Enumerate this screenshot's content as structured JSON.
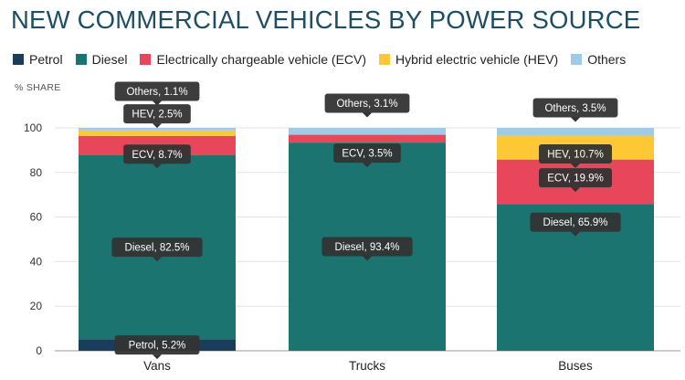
{
  "title": "NEW COMMERCIAL VEHICLES BY POWER SOURCE",
  "legend": [
    {
      "label": "Petrol",
      "color": "#1b3d5c"
    },
    {
      "label": "Diesel",
      "color": "#1b7470"
    },
    {
      "label": "Electrically chargeable vehicle (ECV)",
      "color": "#e8475b"
    },
    {
      "label": "Hybrid electric vehicle (HEV)",
      "color": "#fcc934"
    },
    {
      "label": "Others",
      "color": "#9ecbe7"
    }
  ],
  "chart_data": {
    "type": "bar",
    "stacked": true,
    "ylabel": "% SHARE",
    "ylim": [
      0,
      100
    ],
    "yticks": [
      0,
      20,
      40,
      60,
      80,
      100
    ],
    "categories": [
      "Vans",
      "Trucks",
      "Buses"
    ],
    "series": [
      {
        "name": "Petrol",
        "color": "#1b3d5c",
        "values": [
          5.2,
          0,
          0
        ]
      },
      {
        "name": "Diesel",
        "color": "#1b7470",
        "values": [
          82.5,
          93.4,
          65.9
        ]
      },
      {
        "name": "Electrically chargeable vehicle (ECV)",
        "color": "#e8475b",
        "values": [
          8.7,
          3.5,
          19.9
        ]
      },
      {
        "name": "Hybrid electric vehicle (HEV)",
        "color": "#fcc934",
        "values": [
          2.5,
          0,
          10.7
        ]
      },
      {
        "name": "Others",
        "color": "#9ecbe7",
        "values": [
          1.1,
          3.1,
          3.5
        ]
      }
    ],
    "annotations": [
      {
        "category": "Vans",
        "text": "Petrol, 5.2%",
        "series": "Petrol"
      },
      {
        "category": "Vans",
        "text": "Diesel, 82.5%",
        "series": "Diesel"
      },
      {
        "category": "Vans",
        "text": "ECV, 8.7%",
        "series": "Electrically chargeable vehicle (ECV)"
      },
      {
        "category": "Vans",
        "text": "HEV, 2.5%",
        "series": "Hybrid electric vehicle (HEV)"
      },
      {
        "category": "Vans",
        "text": "Others, 1.1%",
        "series": "Others"
      },
      {
        "category": "Trucks",
        "text": "Diesel, 93.4%",
        "series": "Diesel"
      },
      {
        "category": "Trucks",
        "text": "ECV, 3.5%",
        "series": "Electrically chargeable vehicle (ECV)"
      },
      {
        "category": "Trucks",
        "text": "Others, 3.1%",
        "series": "Others"
      },
      {
        "category": "Buses",
        "text": "Diesel, 65.9%",
        "series": "Diesel"
      },
      {
        "category": "Buses",
        "text": "ECV, 19.9%",
        "series": "Electrically chargeable vehicle (ECV)"
      },
      {
        "category": "Buses",
        "text": "HEV, 10.7%",
        "series": "Hybrid electric vehicle (HEV)"
      },
      {
        "category": "Buses",
        "text": "Others, 3.5%",
        "series": "Others"
      }
    ]
  }
}
